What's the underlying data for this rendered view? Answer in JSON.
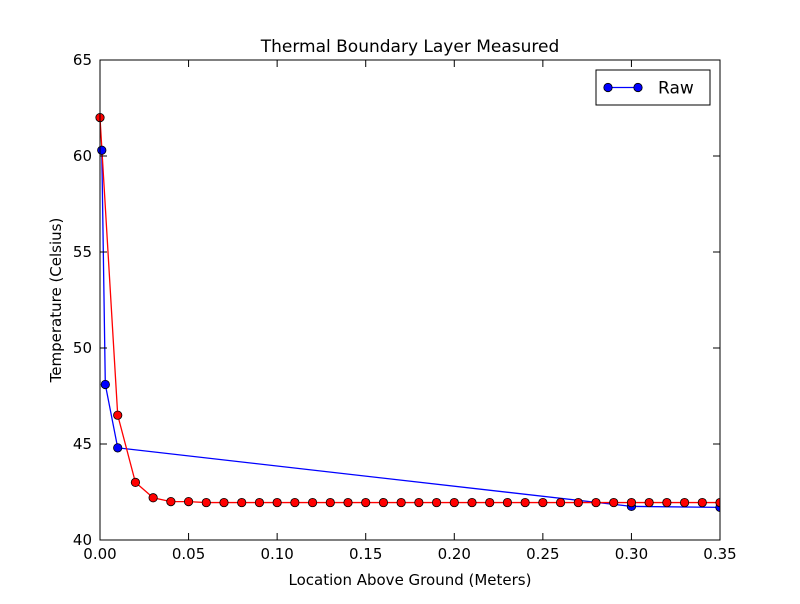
{
  "chart_data": {
    "type": "line",
    "title": "Thermal Boundary Layer Measured",
    "xlabel": "Location Above Ground (Meters)",
    "ylabel": "Temperature (Celsius)",
    "xlim": [
      0,
      0.35
    ],
    "ylim": [
      40,
      65
    ],
    "x_ticks": [
      "0.00",
      "0.05",
      "0.10",
      "0.15",
      "0.20",
      "0.25",
      "0.30",
      "0.35"
    ],
    "y_ticks": [
      "40",
      "45",
      "50",
      "55",
      "60",
      "65"
    ],
    "legend": {
      "placement": "top-right",
      "entries": [
        "Raw"
      ]
    },
    "grid": false,
    "series": [
      {
        "name": "Raw",
        "color": "#0000ff",
        "marker": "circle",
        "points": [
          [
            0.001,
            60.3
          ],
          [
            0.003,
            48.1
          ],
          [
            0.01,
            44.8
          ],
          [
            0.3,
            41.75
          ],
          [
            0.35,
            41.7
          ]
        ]
      },
      {
        "color": "#ff0000",
        "marker": "circle",
        "points": [
          [
            0.0,
            62.0
          ],
          [
            0.01,
            46.5
          ],
          [
            0.02,
            43.0
          ],
          [
            0.03,
            42.2
          ],
          [
            0.04,
            42.0
          ],
          [
            0.05,
            42.0
          ],
          [
            0.06,
            41.95
          ],
          [
            0.07,
            41.95
          ],
          [
            0.08,
            41.95
          ],
          [
            0.09,
            41.95
          ],
          [
            0.1,
            41.95
          ],
          [
            0.11,
            41.95
          ],
          [
            0.12,
            41.95
          ],
          [
            0.13,
            41.95
          ],
          [
            0.14,
            41.95
          ],
          [
            0.15,
            41.95
          ],
          [
            0.16,
            41.95
          ],
          [
            0.17,
            41.95
          ],
          [
            0.18,
            41.95
          ],
          [
            0.19,
            41.95
          ],
          [
            0.2,
            41.95
          ],
          [
            0.21,
            41.95
          ],
          [
            0.22,
            41.95
          ],
          [
            0.23,
            41.95
          ],
          [
            0.24,
            41.95
          ],
          [
            0.25,
            41.95
          ],
          [
            0.26,
            41.95
          ],
          [
            0.27,
            41.95
          ],
          [
            0.28,
            41.95
          ],
          [
            0.29,
            41.95
          ],
          [
            0.3,
            41.95
          ],
          [
            0.31,
            41.95
          ],
          [
            0.32,
            41.95
          ],
          [
            0.33,
            41.95
          ],
          [
            0.34,
            41.95
          ],
          [
            0.35,
            41.95
          ]
        ]
      }
    ]
  }
}
